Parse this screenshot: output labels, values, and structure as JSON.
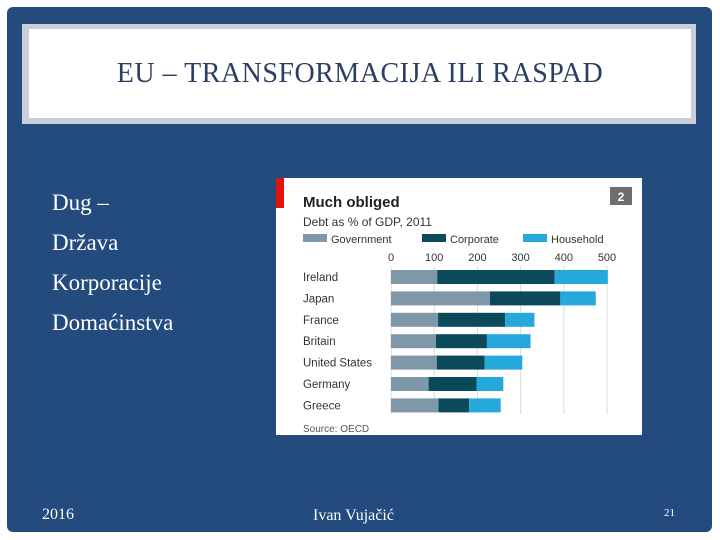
{
  "slide": {
    "title": "EU – TRANSFORMACIJA ILI RASPAD",
    "bullets": [
      "Dug –",
      "Država",
      "Korporacije",
      "Domaćinstva"
    ],
    "footer_left": "2016",
    "footer_center": "Ivan Vujačić",
    "page_number": "21"
  },
  "colors": {
    "frame": "#234b7d",
    "government": "#7e98a8",
    "corporate": "#0b4a5b",
    "household": "#25a8dc",
    "accent_red": "#e3120b",
    "badge": "#6e6e6e"
  },
  "chart_data": {
    "type": "bar",
    "orientation": "horizontal",
    "stacked": true,
    "title": "Much obliged",
    "subtitle": "Debt as % of GDP, 2011",
    "badge": "2",
    "source": "Source: OECD",
    "xlim": [
      0,
      500
    ],
    "xticks": [
      "0",
      "100",
      "200",
      "300",
      "400",
      "500"
    ],
    "categories": [
      "Ireland",
      "Japan",
      "France",
      "Britain",
      "United States",
      "Germany",
      "Greece"
    ],
    "series": [
      {
        "name": "Government",
        "color": "#7e98a8",
        "values": [
          107,
          229,
          109,
          104,
          106,
          87,
          110
        ]
      },
      {
        "name": "Corporate",
        "color": "#0b4a5b",
        "values": [
          272,
          163,
          155,
          118,
          111,
          111,
          71
        ]
      },
      {
        "name": "Household",
        "color": "#25a8dc",
        "values": [
          123,
          82,
          68,
          101,
          87,
          62,
          73
        ]
      }
    ]
  }
}
